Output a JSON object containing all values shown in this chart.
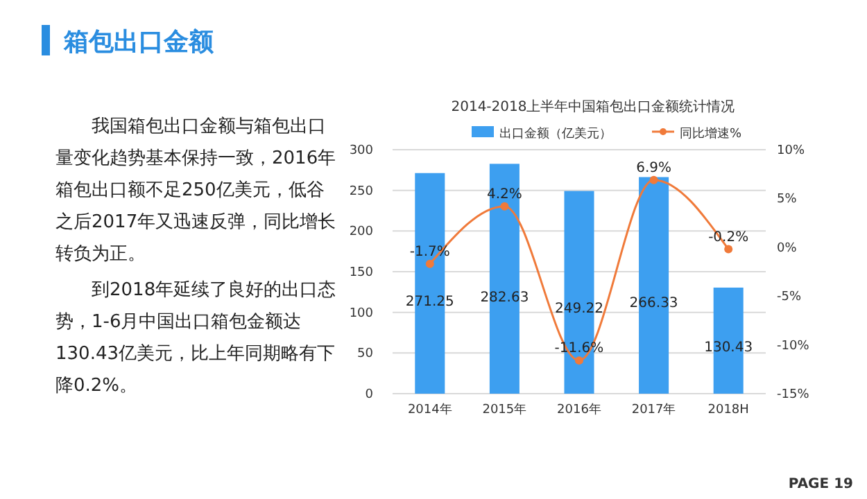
{
  "chart_data": {
    "type": "bar",
    "title": "箱包出口金额",
    "subtitle": "2014-2018上半年中国箱包出口金额统计情况",
    "categories": [
      "2014年",
      "2015年",
      "2016年",
      "2017年",
      "2018H"
    ],
    "series": [
      {
        "name": "出口金额（亿美元）",
        "color": "#3d9ff0",
        "values": [
          271.25,
          282.63,
          249.22,
          266.33,
          130.43
        ]
      },
      {
        "name": "同比增速%",
        "type": "line",
        "axis": "y2",
        "color": "#f07a3a",
        "values": [
          -1.7,
          4.2,
          -11.6,
          6.9,
          -0.2
        ],
        "value_labels": [
          "-1.7%",
          "4.2%",
          "-11.6%",
          "6.9%",
          "-0.2%"
        ]
      }
    ],
    "ylim": [
      0,
      300
    ],
    "yticks": [
      0,
      50,
      100,
      150,
      200,
      250,
      300
    ],
    "y2lim": [
      -15,
      10
    ],
    "y2ticks": [
      {
        "value": -15,
        "label": "-15%"
      },
      {
        "value": -10,
        "label": "-10%"
      },
      {
        "value": -5,
        "label": "-5%"
      },
      {
        "value": 0,
        "label": "0%"
      },
      {
        "value": 5,
        "label": "5%"
      },
      {
        "value": 10,
        "label": "10%"
      }
    ],
    "data_labels": true,
    "grid": "y",
    "legend": "top",
    "marker": "circle",
    "line_style": "solid",
    "annotations": [
      "我国箱包出口金额与箱包出口量变化趋势基本保持一致，2016年箱包出口额不足250亿美元，低谷之后2017年又迅速反弹，同比增长转负为正。",
      "到2018年延续了良好的出口态势，1-6月中国出口箱包金额达130.43亿美元，比上年同期略有下降0.2%。",
      "PAGE 19"
    ]
  }
}
